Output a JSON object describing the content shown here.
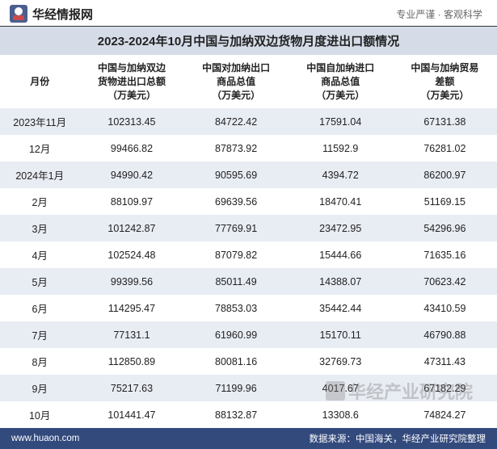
{
  "brand": {
    "name": "华经情报网",
    "tagline": "专业严谨 · 客观科学"
  },
  "title": "2023-2024年10月中国与加纳双边货物月度进出口额情况",
  "table": {
    "columns": [
      "月份",
      "中国与加纳双边\n货物进出口总额\n（万美元）",
      "中国对加纳出口\n商品总值\n（万美元）",
      "中国自加纳进口\n商品总值\n（万美元）",
      "中国与加纳贸易\n差额\n（万美元）"
    ],
    "rows": [
      [
        "2023年11月",
        "102313.45",
        "84722.42",
        "17591.04",
        "67131.38"
      ],
      [
        "12月",
        "99466.82",
        "87873.92",
        "11592.9",
        "76281.02"
      ],
      [
        "2024年1月",
        "94990.42",
        "90595.69",
        "4394.72",
        "86200.97"
      ],
      [
        "2月",
        "88109.97",
        "69639.56",
        "18470.41",
        "51169.15"
      ],
      [
        "3月",
        "101242.87",
        "77769.91",
        "23472.95",
        "54296.96"
      ],
      [
        "4月",
        "102524.48",
        "87079.82",
        "15444.66",
        "71635.16"
      ],
      [
        "5月",
        "99399.56",
        "85011.49",
        "14388.07",
        "70623.42"
      ],
      [
        "6月",
        "114295.47",
        "78853.03",
        "35442.44",
        "43410.59"
      ],
      [
        "7月",
        "77131.1",
        "61960.99",
        "15170.11",
        "46790.88"
      ],
      [
        "8月",
        "112850.89",
        "80081.16",
        "32769.73",
        "47311.43"
      ],
      [
        "9月",
        "75217.63",
        "71199.96",
        "4017.67",
        "67182.29"
      ],
      [
        "10月",
        "101441.47",
        "88132.87",
        "13308.6",
        "74824.27"
      ]
    ]
  },
  "footer": {
    "site": "www.huaon.com",
    "source": "数据来源：中国海关，华经产业研究院整理"
  },
  "watermark": "华经产业研究院",
  "colors": {
    "title_bg": "#d5dce8",
    "row_odd": "#e8ecf3",
    "row_even": "#ffffff",
    "footer_bg": "#334a7d"
  }
}
